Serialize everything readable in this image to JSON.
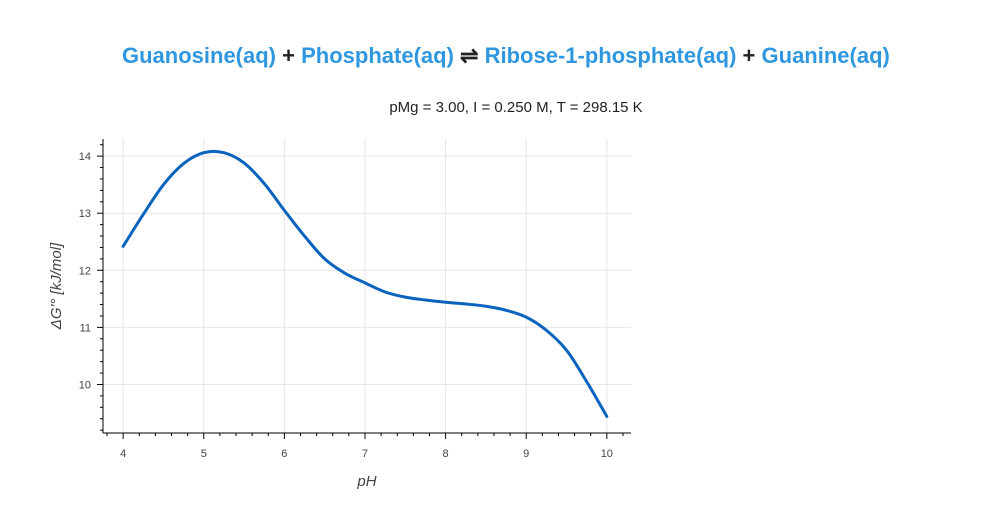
{
  "reaction": {
    "reactant_1": "Guanosine(aq)",
    "plus_1": "+",
    "reactant_2": "Phosphate(aq)",
    "arrow": "⇌",
    "product_1": "Ribose-1-phosphate(aq)",
    "plus_2": "+",
    "product_2": "Guanine(aq)",
    "compound_color": "#2f97e0"
  },
  "chart_data": {
    "type": "line",
    "title": "Guanosine(aq) + Phosphate(aq) ⇌ Ribose-1-phosphate(aq) + Guanine(aq)",
    "subtitle": "pMg = 3.00, I = 0.250 M, T = 298.15 K",
    "xlabel": "pH",
    "ylabel": "ΔG'° [kJ/mol]",
    "xlim": [
      3.75,
      10.3
    ],
    "ylim": [
      9.15,
      14.3
    ],
    "xticks": [
      "4",
      "5",
      "6",
      "7",
      "8",
      "9",
      "10"
    ],
    "yticks": [
      "10",
      "11",
      "12",
      "13",
      "14"
    ],
    "grid": true,
    "line_color": "#0a64bd",
    "series": [
      {
        "x": [
          4.0,
          4.25,
          4.5,
          4.75,
          5.0,
          5.25,
          5.5,
          5.75,
          6.0,
          6.25,
          6.5,
          6.75,
          7.0,
          7.25,
          7.5,
          7.75,
          8.0,
          8.25,
          8.5,
          8.75,
          9.0,
          9.25,
          9.5,
          9.75,
          10.0
        ],
        "values": [
          12.42,
          12.98,
          13.5,
          13.87,
          14.06,
          14.06,
          13.88,
          13.52,
          13.05,
          12.6,
          12.2,
          11.95,
          11.78,
          11.62,
          11.53,
          11.48,
          11.44,
          11.41,
          11.37,
          11.3,
          11.18,
          10.95,
          10.6,
          10.05,
          9.44
        ]
      }
    ]
  }
}
